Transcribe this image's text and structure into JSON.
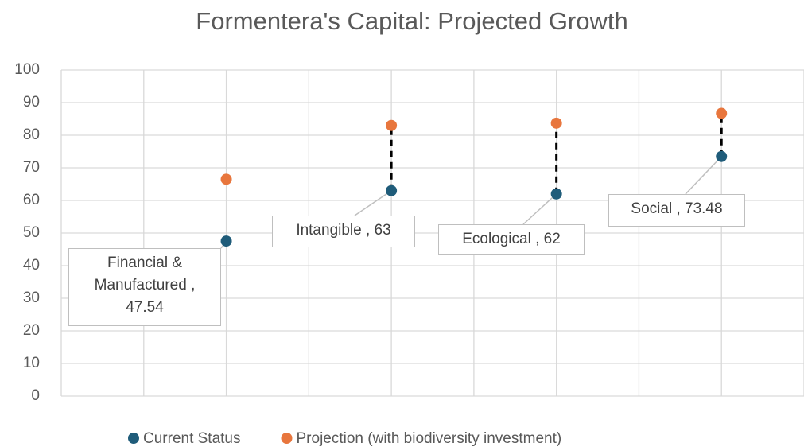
{
  "chart_data": {
    "type": "scatter",
    "title": "Formentera's Capital: Projected Growth",
    "x": [
      1,
      2,
      3,
      4
    ],
    "series": [
      {
        "name": "Current Status",
        "color": "#1f5c7a",
        "values": [
          47.54,
          63,
          62,
          73.48
        ],
        "value_labels": [
          "Financial & Manufactured , 47.54",
          "Intangible , 63",
          "Ecological , 62",
          "Social , 73.48"
        ]
      },
      {
        "name": "Projection (with biodiversity investment)",
        "color": "#e8763d",
        "values": [
          66.5,
          83,
          83.7,
          86.7
        ]
      }
    ],
    "connectors": [
      false,
      true,
      true,
      true
    ],
    "xlim": [
      0,
      4.5
    ],
    "xticks": [
      0,
      0.5,
      1,
      1.5,
      2,
      2.5,
      3,
      3.5,
      4,
      4.5
    ],
    "ylim": [
      0,
      100
    ],
    "yticks": [
      0,
      10,
      20,
      30,
      40,
      50,
      60,
      70,
      80,
      90,
      100
    ],
    "grid": true,
    "legend": "bottom"
  }
}
